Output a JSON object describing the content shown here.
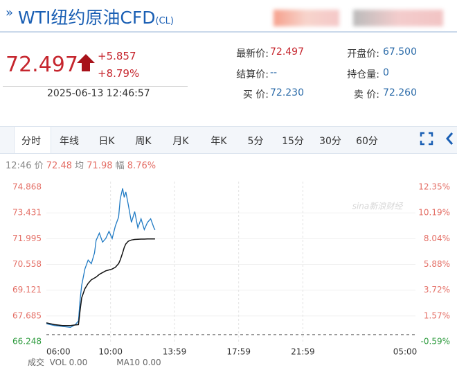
{
  "header": {
    "title": "WTI纽约原油CFD",
    "code": "(CL)"
  },
  "quote": {
    "price": "72.497",
    "change": "+5.857",
    "change_pct": "+8.79%",
    "time": "2025-06-13 12:46:57"
  },
  "info": [
    [
      "最新价:",
      "72.497"
    ],
    [
      "开盘价:",
      "67.500"
    ],
    [
      "结算价:",
      "--"
    ],
    [
      "持仓量:",
      "0"
    ],
    [
      "买 价:",
      "72.230"
    ],
    [
      "卖 价:",
      "72.260"
    ]
  ],
  "tabs": [
    "分时",
    "年线",
    "日K",
    "周K",
    "月K",
    "年K",
    "5分",
    "15分",
    "30分",
    "60分"
  ],
  "status": {
    "time": "12:46",
    "price_label": "价",
    "price": "72.48",
    "avg_label": "均",
    "avg": "71.98",
    "range_label": "幅",
    "range": "8.76%"
  },
  "chart_data": {
    "type": "line",
    "x": [
      0,
      0.5,
      1,
      1.5,
      1.8,
      2,
      2.1,
      2.2,
      2.4,
      2.6,
      2.8,
      3,
      3.1,
      3.3,
      3.5,
      3.7,
      3.9,
      4.1,
      4.3,
      4.5,
      4.6,
      4.75,
      4.85,
      4.95,
      5.1,
      5.3,
      5.5,
      5.7,
      5.9,
      6.1,
      6.3,
      6.5,
      6.7,
      6.77
    ],
    "series": [
      {
        "name": "价",
        "color": "#1f7ac4",
        "values": [
          67.25,
          67.15,
          67.1,
          67.05,
          67.2,
          67.4,
          68.6,
          69.4,
          70.3,
          70.8,
          70.6,
          71.2,
          71.9,
          72.3,
          71.8,
          72.0,
          72.4,
          72.0,
          72.7,
          73.2,
          74.2,
          74.8,
          74.3,
          74.6,
          73.9,
          72.9,
          73.5,
          72.6,
          73.1,
          72.5,
          72.9,
          73.1,
          72.6,
          72.48
        ]
      },
      {
        "name": "均",
        "color": "#111111",
        "values": [
          67.3,
          67.2,
          67.15,
          67.15,
          67.18,
          67.2,
          68.0,
          68.7,
          69.2,
          69.5,
          69.7,
          69.8,
          69.85,
          70.0,
          70.1,
          70.2,
          70.25,
          70.3,
          70.4,
          70.6,
          70.8,
          71.2,
          71.5,
          71.7,
          71.85,
          71.92,
          71.95,
          71.96,
          71.97,
          71.97,
          71.98,
          71.98,
          71.98,
          71.98
        ]
      }
    ],
    "xlim": [
      0,
      23
    ],
    "xticks": [
      {
        "value": 0,
        "label": "06:00"
      },
      {
        "value": 4,
        "label": "10:00"
      },
      {
        "value": 7.983,
        "label": "13:59"
      },
      {
        "value": 11.983,
        "label": "17:59"
      },
      {
        "value": 15.983,
        "label": "21:59"
      },
      {
        "value": 23,
        "label": "05:00"
      }
    ],
    "ylim": [
      66.248,
      74.868
    ],
    "yticks": [
      74.868,
      73.431,
      71.995,
      70.558,
      69.121,
      67.685,
      66.248
    ],
    "y2lim": [
      -0.59,
      12.35
    ],
    "y2ticks": [
      {
        "value": 12.35,
        "label": "12.35%"
      },
      {
        "value": 10.19,
        "label": "10.19%"
      },
      {
        "value": 8.04,
        "label": "8.04%"
      },
      {
        "value": 5.88,
        "label": "5.88%"
      },
      {
        "value": 3.72,
        "label": "3.72%"
      },
      {
        "value": 1.57,
        "label": "1.57%"
      },
      {
        "value": -0.59,
        "label": "-0.59%"
      }
    ],
    "reference": 66.64,
    "up_color": "#e46f66",
    "down_color": "#2e9b3e",
    "grid": true,
    "watermark": "sina新浪财经"
  },
  "footer": {
    "vol_label": "成交",
    "vol": "VOL 0.00",
    "ma": "MA10 0.00"
  }
}
